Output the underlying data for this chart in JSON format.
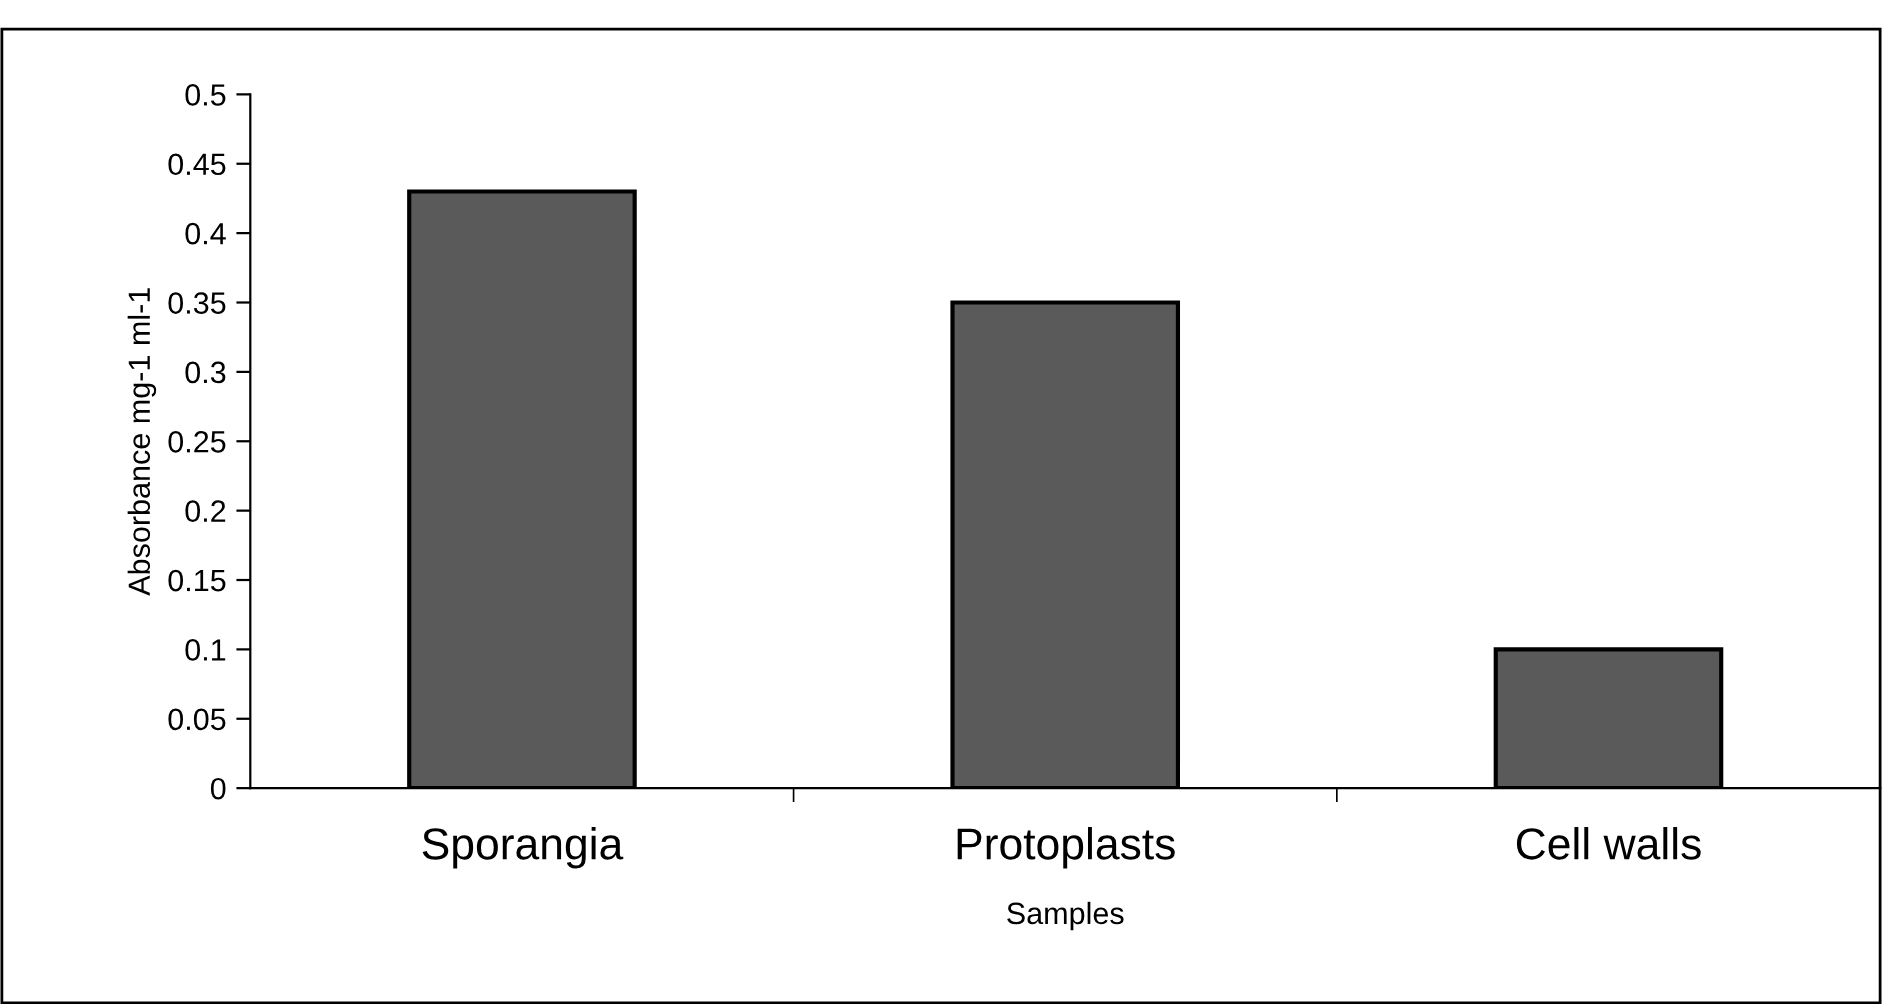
{
  "chart_data": {
    "type": "bar",
    "xlabel": "Samples",
    "ylabel": "Absorbance mg-1 ml-1",
    "categories": [
      "Sporangia",
      "Protoplasts",
      "Cell walls"
    ],
    "values": [
      0.43,
      0.35,
      0.1
    ],
    "color": "#5a5a5a",
    "ylim": [
      0,
      0.5
    ],
    "yticks": [
      0,
      0.05,
      0.1,
      0.15,
      0.2,
      0.25,
      0.3,
      0.35,
      0.4,
      0.45,
      0.5
    ],
    "grid": false,
    "legend": false
  }
}
